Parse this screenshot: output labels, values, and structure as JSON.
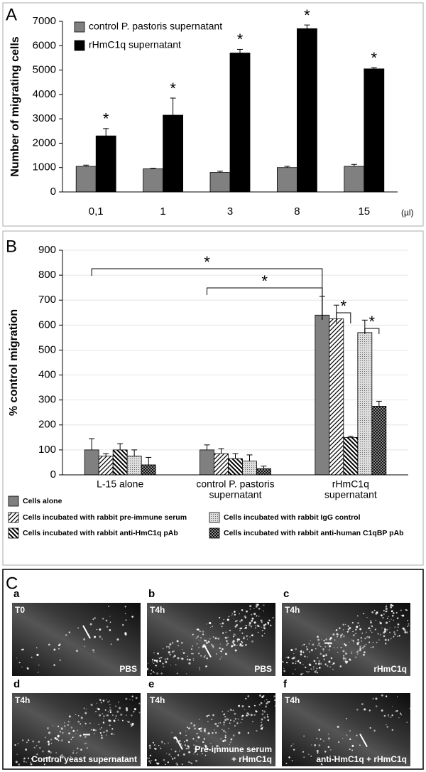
{
  "chart_data": [
    {
      "type": "bar",
      "panel_label": "A",
      "ylabel": "Number of migrating cells",
      "x_unit_label": "(µl)",
      "categories": [
        "0,1",
        "1",
        "3",
        "8",
        "15"
      ],
      "ylim": [
        0,
        7000
      ],
      "yticks": [
        0,
        1000,
        2000,
        3000,
        4000,
        5000,
        6000,
        7000
      ],
      "series": [
        {
          "name": "control P. pastoris supernatant",
          "color": "#808080",
          "pattern": "solid",
          "values": [
            1050,
            950,
            800,
            1000,
            1050
          ],
          "errors": [
            50,
            20,
            50,
            50,
            80
          ]
        },
        {
          "name": "rHmC1q supernatant",
          "color": "#000000",
          "pattern": "solid",
          "values": [
            2300,
            3150,
            5700,
            6700,
            5050
          ],
          "errors": [
            300,
            700,
            150,
            150,
            50
          ]
        }
      ],
      "annotations": [
        "*",
        "*",
        "*",
        "*",
        "*"
      ]
    },
    {
      "type": "bar",
      "panel_label": "B",
      "ylabel": "% control migration",
      "grid": true,
      "categories": [
        [
          "L-15 alone"
        ],
        [
          "control P. pastoris",
          "supernatant"
        ],
        [
          "rHmC1q",
          "supernatant"
        ]
      ],
      "ylim": [
        0,
        900
      ],
      "yticks": [
        0,
        100,
        200,
        300,
        400,
        500,
        600,
        700,
        800,
        900
      ],
      "series": [
        {
          "name": "Cells alone",
          "color": "#808080",
          "pattern": "solid",
          "values": [
            100,
            100,
            640
          ],
          "errors": [
            45,
            20,
            75
          ]
        },
        {
          "name": "Cells incubated with rabbit pre-immune serum",
          "color": "#ffffff",
          "pattern": "hatch-right",
          "values": [
            75,
            85,
            625
          ],
          "errors": [
            10,
            20,
            55
          ]
        },
        {
          "name": "Cells incubated with rabbit anti-HmC1q pAb",
          "color": "#000000",
          "pattern": "hatch-left",
          "values": [
            100,
            65,
            150
          ],
          "errors": [
            25,
            20,
            5
          ]
        },
        {
          "name": "Cells incubated with rabbit IgG control",
          "color": "#cccccc",
          "pattern": "dots",
          "values": [
            75,
            55,
            570
          ],
          "errors": [
            25,
            25,
            50
          ]
        },
        {
          "name": "Cells incubated with rabbit anti-human C1qBP pAb",
          "color": "#222222",
          "pattern": "checker",
          "values": [
            40,
            25,
            275
          ],
          "errors": [
            30,
            10,
            20
          ]
        }
      ],
      "annotations": [
        "*",
        "*",
        "*",
        "*"
      ]
    }
  ],
  "panel_c": {
    "label": "C",
    "images": [
      {
        "letter": "a",
        "time": "T0",
        "caption": [
          "PBS"
        ]
      },
      {
        "letter": "b",
        "time": "T4h",
        "caption": [
          "PBS"
        ]
      },
      {
        "letter": "c",
        "time": "T4h",
        "caption": [
          "rHmC1q"
        ]
      },
      {
        "letter": "d",
        "time": "T4h",
        "caption": [
          "Control yeast supernatant"
        ]
      },
      {
        "letter": "e",
        "time": "T4h",
        "caption": [
          "Pre-immune serum",
          "+ rHmC1q"
        ]
      },
      {
        "letter": "f",
        "time": "T4h",
        "caption": [
          "anti-HmC1q + rHmC1q"
        ]
      }
    ]
  }
}
